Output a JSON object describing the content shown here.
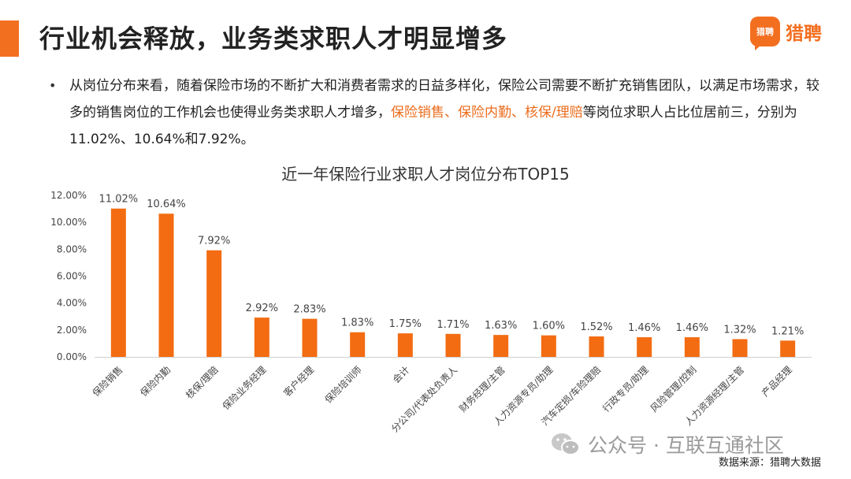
{
  "header": {
    "title": "行业机会释放，业务类求职人才明显增多",
    "logo_mark": "猎聘",
    "logo_name": "猎聘"
  },
  "colors": {
    "brand": "#F36F20",
    "bar": "#F36C12",
    "axis_text": "#444444",
    "title_text": "#333333"
  },
  "bullet": {
    "text_before": "从岗位分布来看，随着保险市场的不断扩大和消费者需求的日益多样化，保险公司需要不断扩充销售团队，以满足市场需求，较多的销售岗位的工作机会也使得业务类求职人才增多，",
    "highlight": "保险销售、保险内勤、核保/理赔",
    "text_after": "等岗位求职人占比位居前三，分别为11.02%、10.64%和7.92%。"
  },
  "chart_data": {
    "type": "bar",
    "title": "近一年保险行业求职人才岗位分布TOP15",
    "categories": [
      "保险销售",
      "保险内勤",
      "核保/理赔",
      "保险业务经理",
      "客户经理",
      "保险培训师",
      "会计",
      "分公司/代表处负责人",
      "财务经理/主管",
      "人力资源专员/助理",
      "汽车定损/车险理赔",
      "行政专员/助理",
      "风险管理/控制",
      "人力资源经理/主管",
      "产品经理"
    ],
    "values": [
      11.02,
      10.64,
      7.92,
      2.92,
      2.83,
      1.83,
      1.75,
      1.71,
      1.63,
      1.6,
      1.52,
      1.46,
      1.46,
      1.32,
      1.21
    ],
    "value_labels": [
      "11.02%",
      "10.64%",
      "7.92%",
      "2.92%",
      "2.83%",
      "1.83%",
      "1.75%",
      "1.71%",
      "1.63%",
      "1.60%",
      "1.52%",
      "1.46%",
      "1.46%",
      "1.32%",
      "1.21%"
    ],
    "y_ticks": [
      0,
      2,
      4,
      6,
      8,
      10,
      12
    ],
    "y_tick_labels": [
      "0.00%",
      "2.00%",
      "4.00%",
      "6.00%",
      "8.00%",
      "10.00%",
      "12.00%"
    ],
    "ylim": [
      0,
      12
    ],
    "xlabel": "",
    "ylabel": "",
    "grid": false,
    "legend": "none"
  },
  "watermark": {
    "text": "公众号 · 互联互通社区"
  },
  "source": {
    "text": "数据来源：猎聘大数据"
  }
}
